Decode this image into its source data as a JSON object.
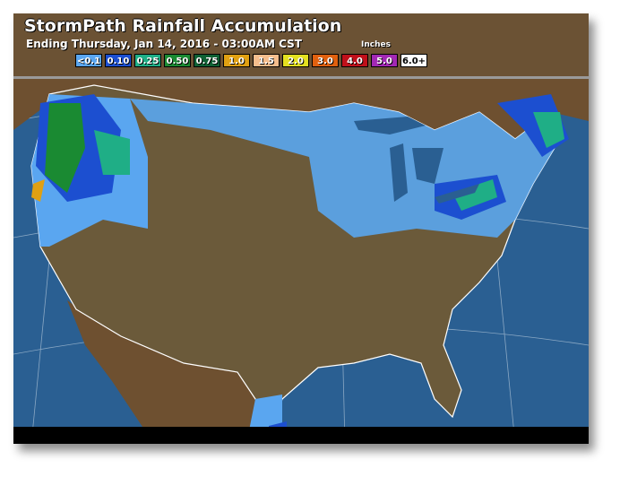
{
  "title": "StormPath Rainfall Accumulation",
  "subtitle": "Ending Thursday, Jan 14, 2016 - 03:00AM CST",
  "units": "Inches",
  "legend": [
    {
      "label": "<0.1",
      "color": "#5aa6f0"
    },
    {
      "label": "0.10",
      "color": "#1c4fd0"
    },
    {
      "label": "0.25",
      "color": "#1fae86"
    },
    {
      "label": "0.50",
      "color": "#1a8a32"
    },
    {
      "label": "0.75",
      "color": "#0f6134"
    },
    {
      "label": "1.0",
      "color": "#e0a012"
    },
    {
      "label": "1.5",
      "color": "#f5bd8c"
    },
    {
      "label": "2.0",
      "color": "#e4e020"
    },
    {
      "label": "3.0",
      "color": "#e0600e"
    },
    {
      "label": "4.0",
      "color": "#c0101a"
    },
    {
      "label": "5.0",
      "color": "#a228b4"
    },
    {
      "label": "6.0+",
      "color": "#ffffff"
    }
  ],
  "colors": {
    "ocean": "#2a5f92",
    "land": "#6e5030",
    "us_land": "#6b5a3a",
    "border": "#ffffff"
  }
}
